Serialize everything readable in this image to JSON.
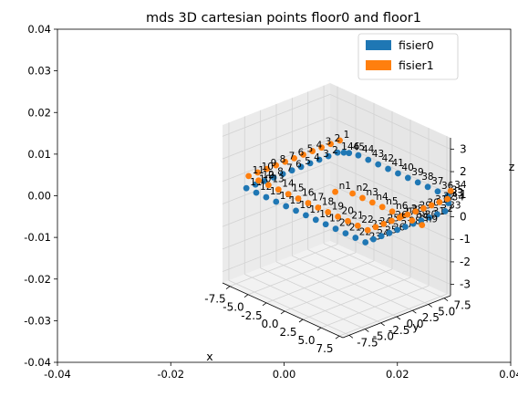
{
  "title": "mds 3D cartesian points floor0 and floor1",
  "chart_data": {
    "type": "scatter",
    "title": "mds 3D cartesian points floor0 and floor1",
    "projection": "3d",
    "x_2d": {
      "label": "",
      "lim": [
        -0.04,
        0.04
      ],
      "ticks": [
        "-0.04",
        "-0.02",
        "0.00",
        "0.02",
        "0.04"
      ]
    },
    "y_2d": {
      "label": "",
      "lim": [
        -0.04,
        0.04
      ],
      "ticks": [
        "-0.04",
        "-0.03",
        "-0.02",
        "-0.01",
        "0.00",
        "0.01",
        "0.02",
        "0.03",
        "0.04"
      ]
    },
    "x_3d": {
      "label": "x",
      "lim": [
        -8.5,
        8
      ],
      "ticks": [
        "-7.5",
        "-5.0",
        "-2.5",
        "0.0",
        "2.5",
        "5.0",
        "7.5"
      ]
    },
    "y_3d": {
      "label": "y",
      "lim": [
        -8.5,
        8.5
      ],
      "ticks": [
        "-7.5",
        "-5.0",
        "-2.5",
        "0.0",
        "2.5",
        "5.0",
        "7.5"
      ]
    },
    "z_3d": {
      "label": "z",
      "lim": [
        -3.5,
        3.5
      ],
      "ticks": [
        "-3",
        "-2",
        "-1",
        "0",
        "1",
        "2",
        "3"
      ]
    },
    "grid": true,
    "legend": {
      "placement": "top-right"
    },
    "series": [
      {
        "name": "fisier0",
        "color": "#1f77b4",
        "points": [
          {
            "label": "1",
            "x": -6.0,
            "y": 6.0,
            "z": 1.3
          },
          {
            "label": "2",
            "x": -6.0,
            "y": 4.4,
            "z": 1.3
          },
          {
            "label": "3",
            "x": -6.0,
            "y": 2.8,
            "z": 1.3
          },
          {
            "label": "4",
            "x": -6.0,
            "y": 1.2,
            "z": 1.3
          },
          {
            "label": "5",
            "x": -6.0,
            "y": -0.4,
            "z": 1.3
          },
          {
            "label": "6",
            "x": -6.0,
            "y": -2.0,
            "z": 1.3
          },
          {
            "label": "7",
            "x": -6.0,
            "y": -3.6,
            "z": 1.3
          },
          {
            "label": "8",
            "x": -6.0,
            "y": -5.2,
            "z": 1.3
          },
          {
            "label": "9",
            "x": -6.0,
            "y": -6.8,
            "z": 1.3
          },
          {
            "label": "10",
            "x": -6.0,
            "y": -8.4,
            "z": 1.3
          },
          {
            "label": "11",
            "x": -6.0,
            "y": -10.0,
            "z": 1.3
          },
          {
            "label": "12",
            "x": -4.3,
            "y": -10.0,
            "z": 1.3
          },
          {
            "label": "13",
            "x": -2.6,
            "y": -10.0,
            "z": 1.3
          },
          {
            "label": "14",
            "x": -0.9,
            "y": -10.0,
            "z": 1.3
          },
          {
            "label": "15",
            "x": 0.8,
            "y": -10.0,
            "z": 1.3
          },
          {
            "label": "16",
            "x": 2.5,
            "y": -10.0,
            "z": 1.3
          },
          {
            "label": "17",
            "x": 4.2,
            "y": -10.0,
            "z": 1.3
          },
          {
            "label": "18",
            "x": 5.9,
            "y": -10.0,
            "z": 1.3
          },
          {
            "label": "19",
            "x": 7.6,
            "y": -10.0,
            "z": 1.3
          },
          {
            "label": "20",
            "x": 9.3,
            "y": -10.0,
            "z": 1.3
          },
          {
            "label": "21",
            "x": 11.0,
            "y": -10.0,
            "z": 1.3
          },
          {
            "label": "22",
            "x": 12.7,
            "y": -10.0,
            "z": 1.3
          },
          {
            "label": "23",
            "x": 14.4,
            "y": -10.0,
            "z": 1.3
          },
          {
            "label": "24",
            "x": 14.4,
            "y": -8.6,
            "z": 1.3
          },
          {
            "label": "25",
            "x": 14.4,
            "y": -7.2,
            "z": 1.3
          },
          {
            "label": "26",
            "x": 14.4,
            "y": -5.8,
            "z": 1.3
          },
          {
            "label": "27",
            "x": 14.4,
            "y": -4.4,
            "z": 1.3
          },
          {
            "label": "28",
            "x": 14.4,
            "y": -3.0,
            "z": 1.3
          },
          {
            "label": "29",
            "x": 14.4,
            "y": -1.6,
            "z": 1.3
          },
          {
            "label": "30",
            "x": 14.4,
            "y": -0.2,
            "z": 1.3
          },
          {
            "label": "31",
            "x": 14.4,
            "y": 1.2,
            "z": 1.3
          },
          {
            "label": "32",
            "x": 14.4,
            "y": 2.6,
            "z": 1.3
          },
          {
            "label": "33",
            "x": 14.4,
            "y": 4.0,
            "z": 1.3
          },
          {
            "label": "34",
            "x": 13.0,
            "y": 6.0,
            "z": 1.3
          },
          {
            "label": "35",
            "x": 11.5,
            "y": 7.4,
            "z": 1.3
          },
          {
            "label": "36",
            "x": 9.8,
            "y": 7.4,
            "z": 1.3
          },
          {
            "label": "37",
            "x": 8.1,
            "y": 7.4,
            "z": 1.3
          },
          {
            "label": "38",
            "x": 6.4,
            "y": 7.4,
            "z": 1.3
          },
          {
            "label": "39",
            "x": 4.7,
            "y": 7.4,
            "z": 1.3
          },
          {
            "label": "40",
            "x": 3.0,
            "y": 7.4,
            "z": 1.3
          },
          {
            "label": "41",
            "x": 1.3,
            "y": 7.4,
            "z": 1.3
          },
          {
            "label": "42",
            "x": -0.4,
            "y": 7.4,
            "z": 1.3
          },
          {
            "label": "43",
            "x": -2.1,
            "y": 7.4,
            "z": 1.3
          },
          {
            "label": "44",
            "x": -3.8,
            "y": 7.4,
            "z": 1.3
          },
          {
            "label": "45",
            "x": -5.0,
            "y": 7.0,
            "z": 1.3
          },
          {
            "label": "46",
            "x": -5.5,
            "y": 6.6,
            "z": 1.3
          }
        ]
      },
      {
        "name": "fisier1",
        "color": "#ff7f0e",
        "points": [
          {
            "label": "n1",
            "x": -6.0,
            "y": 5.6,
            "z": -0.4
          },
          {
            "label": "n2",
            "x": -4.3,
            "y": 6.9,
            "z": -0.4
          },
          {
            "label": "n3",
            "x": -2.6,
            "y": 6.9,
            "z": -0.4
          },
          {
            "label": "n4",
            "x": -0.9,
            "y": 6.9,
            "z": -0.4
          },
          {
            "label": "n5",
            "x": 0.8,
            "y": 6.9,
            "z": -0.4
          },
          {
            "label": "n6",
            "x": 2.5,
            "y": 6.9,
            "z": -0.4
          },
          {
            "label": "n7",
            "x": 4.2,
            "y": 6.9,
            "z": -0.4
          },
          {
            "label": "n8",
            "x": 5.9,
            "y": 6.9,
            "z": -0.4
          },
          {
            "label": "n9",
            "x": 7.6,
            "y": 6.9,
            "z": -0.4
          },
          {
            "label": "1",
            "x": -6.0,
            "y": 6.4,
            "z": 1.8
          },
          {
            "label": "2",
            "x": -6.0,
            "y": 4.8,
            "z": 1.8
          },
          {
            "label": "3",
            "x": -6.0,
            "y": 3.2,
            "z": 1.8
          },
          {
            "label": "4",
            "x": -6.0,
            "y": 1.6,
            "z": 1.8
          },
          {
            "label": "5",
            "x": -6.0,
            "y": 0.0,
            "z": 1.8
          },
          {
            "label": "6",
            "x": -6.0,
            "y": -1.6,
            "z": 1.8
          },
          {
            "label": "7",
            "x": -6.0,
            "y": -3.2,
            "z": 1.8
          },
          {
            "label": "8",
            "x": -6.0,
            "y": -4.8,
            "z": 1.8
          },
          {
            "label": "9",
            "x": -6.0,
            "y": -6.4,
            "z": 1.8
          },
          {
            "label": "10",
            "x": -6.0,
            "y": -8.0,
            "z": 1.8
          },
          {
            "label": "11",
            "x": -6.0,
            "y": -9.6,
            "z": 1.8
          },
          {
            "label": "12",
            "x": -4.3,
            "y": -9.6,
            "z": 1.8
          },
          {
            "label": "13",
            "x": -2.6,
            "y": -9.6,
            "z": 1.8
          },
          {
            "label": "14",
            "x": -0.9,
            "y": -9.6,
            "z": 1.8
          },
          {
            "label": "15",
            "x": 0.8,
            "y": -9.6,
            "z": 1.8
          },
          {
            "label": "16",
            "x": 2.5,
            "y": -9.6,
            "z": 1.8
          },
          {
            "label": "17",
            "x": 4.2,
            "y": -9.6,
            "z": 1.8
          },
          {
            "label": "18",
            "x": 5.9,
            "y": -9.6,
            "z": 1.8
          },
          {
            "label": "19",
            "x": 7.6,
            "y": -9.6,
            "z": 1.8
          },
          {
            "label": "20",
            "x": 9.3,
            "y": -9.6,
            "z": 1.8
          },
          {
            "label": "21",
            "x": 11.0,
            "y": -9.6,
            "z": 1.8
          },
          {
            "label": "22",
            "x": 12.7,
            "y": -9.6,
            "z": 1.8
          },
          {
            "label": "23",
            "x": 14.4,
            "y": -9.6,
            "z": 1.8
          },
          {
            "label": "24",
            "x": 14.4,
            "y": -8.2,
            "z": 1.8
          },
          {
            "label": "25",
            "x": 14.4,
            "y": -6.8,
            "z": 1.8
          },
          {
            "label": "26",
            "x": 14.4,
            "y": -5.4,
            "z": 1.8
          },
          {
            "label": "27",
            "x": 14.4,
            "y": -4.0,
            "z": 1.8
          },
          {
            "label": "28",
            "x": 14.4,
            "y": -2.6,
            "z": 1.8
          },
          {
            "label": "29",
            "x": 14.4,
            "y": -1.2,
            "z": 1.8
          },
          {
            "label": "30",
            "x": 14.4,
            "y": 0.2,
            "z": 1.8
          },
          {
            "label": "31",
            "x": 14.4,
            "y": 1.6,
            "z": 1.8
          },
          {
            "label": "32",
            "x": 14.4,
            "y": 3.0,
            "z": 1.8
          },
          {
            "label": "33",
            "x": 14.4,
            "y": 4.4,
            "z": 1.8
          },
          {
            "label": "34",
            "x": 13.0,
            "y": 6.4,
            "z": 1.8
          }
        ]
      }
    ]
  }
}
